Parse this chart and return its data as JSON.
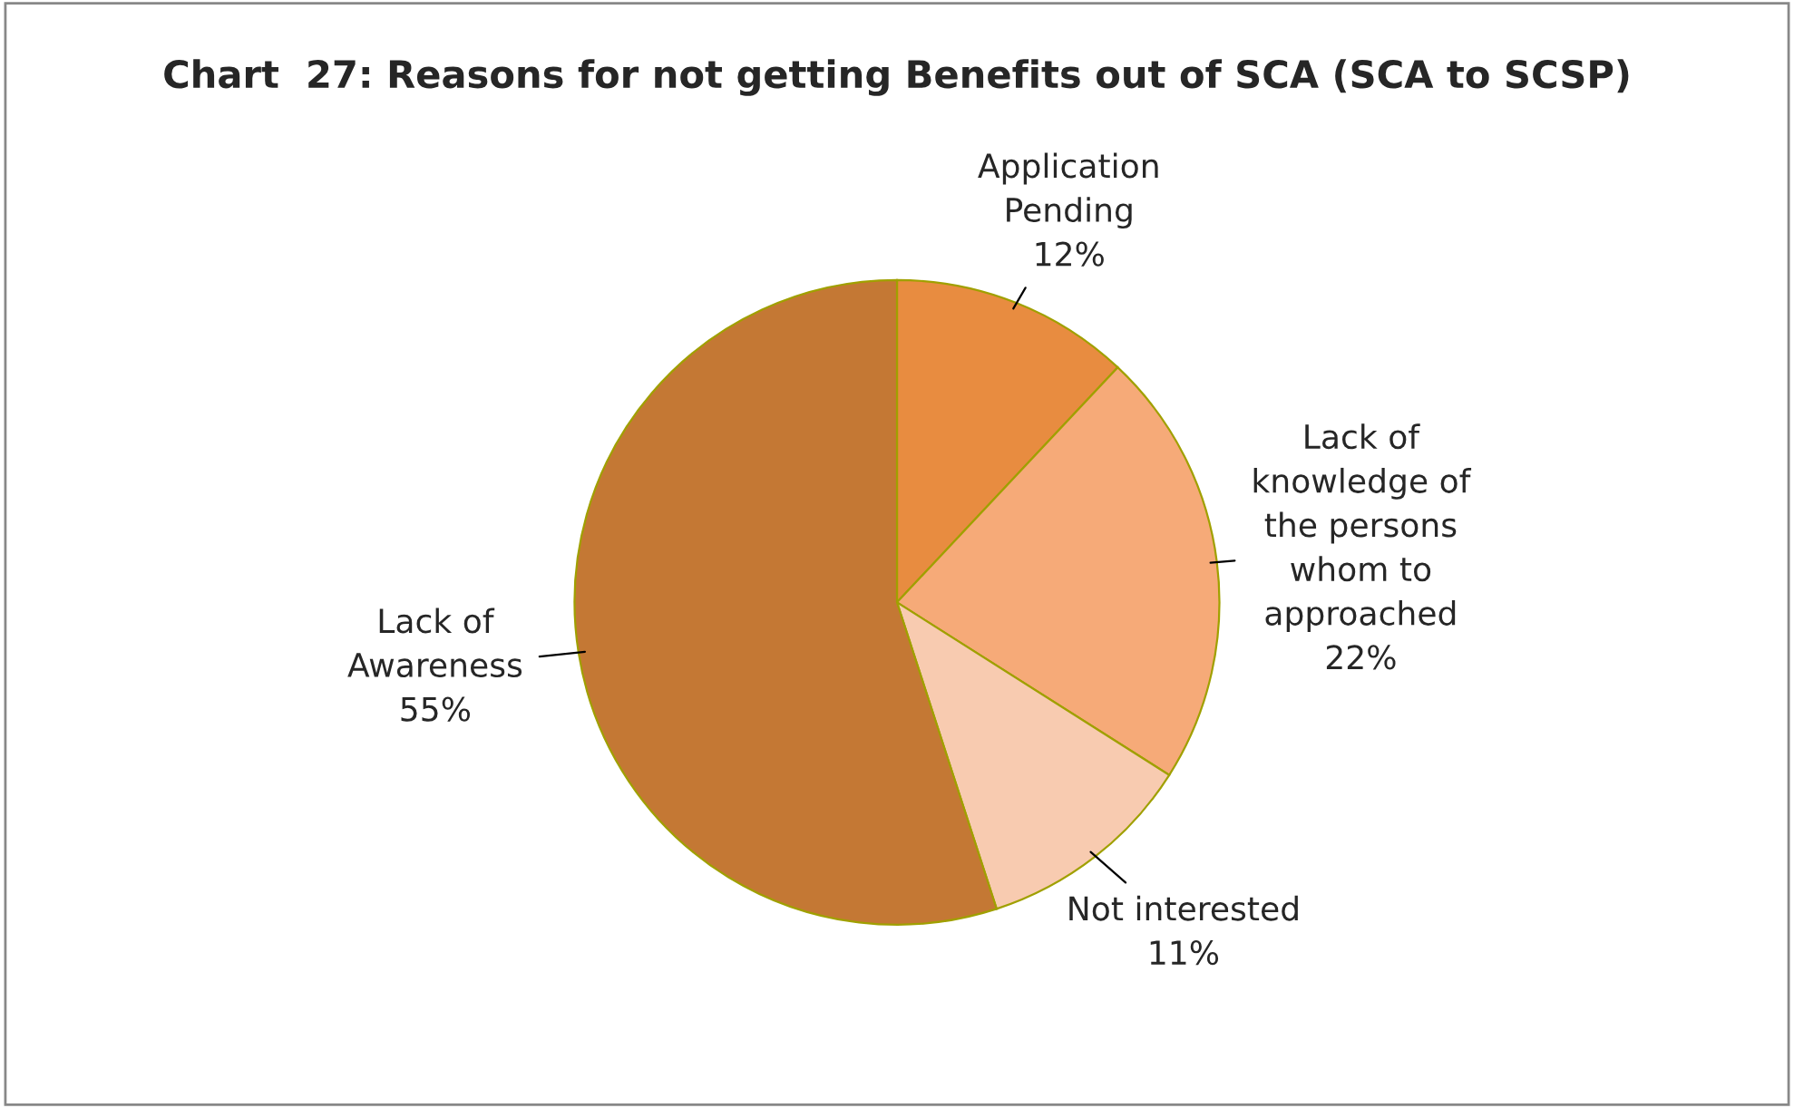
{
  "chart_data": {
    "type": "pie",
    "title": "Chart  27: Reasons for not getting Benefits out of SCA (SCA to SCSP)",
    "categories": [
      "Application\nPending",
      "Lack of\nknowledge of\nthe persons\nwhom to\napproached",
      "Not interested",
      "Lack of\nAwareness"
    ],
    "values": [
      12,
      22,
      11,
      55
    ],
    "value_labels": [
      "12%",
      "22%",
      "11%",
      "55%"
    ],
    "colors": [
      "#e88c40",
      "#f6aa78",
      "#f8cbb0",
      "#c47834"
    ],
    "legend": false
  }
}
